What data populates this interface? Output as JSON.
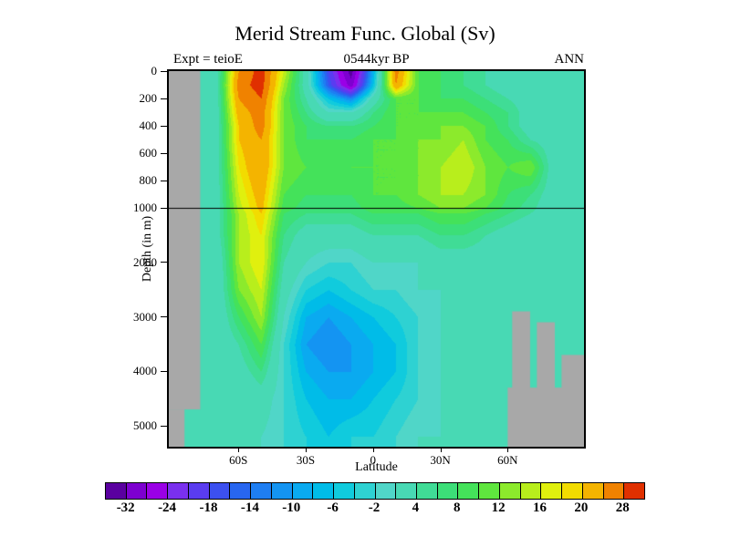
{
  "header": {
    "expt_label": "Expt = teioE",
    "time_label": "0544kyr BP",
    "season_label": "ANN"
  },
  "chart_data": {
    "type": "heatmap",
    "title": "Merid Stream Func. Global (Sv)",
    "subtitle": "0544kyr BP",
    "experiment": "teioE",
    "season": "ANN",
    "units": "Sv",
    "xlabel": "Latitude",
    "ylabel": "Depth (in m)",
    "xlim": [
      -91,
      94
    ],
    "depth_axis": {
      "note": "split axis: 0-1000 m stretched, 1000-5400 m compressed, black line at 1000 m",
      "break_depth": 1000,
      "max_depth": 5400
    },
    "x_ticks": [
      {
        "value": -60,
        "label": "60S"
      },
      {
        "value": -30,
        "label": "30S"
      },
      {
        "value": 0,
        "label": "0"
      },
      {
        "value": 30,
        "label": "30N"
      },
      {
        "value": 60,
        "label": "60N"
      }
    ],
    "y_ticks": [
      {
        "value": 0,
        "label": "0"
      },
      {
        "value": 200,
        "label": "200"
      },
      {
        "value": 400,
        "label": "400"
      },
      {
        "value": 600,
        "label": "600"
      },
      {
        "value": 800,
        "label": "800"
      },
      {
        "value": 1000,
        "label": "1000"
      },
      {
        "value": 2000,
        "label": "2000"
      },
      {
        "value": 3000,
        "label": "3000"
      },
      {
        "value": 4000,
        "label": "4000"
      },
      {
        "value": 5000,
        "label": "5000"
      }
    ],
    "grid": {
      "lats": [
        -90,
        -80,
        -70,
        -60,
        -50,
        -40,
        -30,
        -20,
        -10,
        0,
        10,
        20,
        30,
        40,
        50,
        60,
        70,
        80,
        90
      ],
      "depths": [
        0,
        100,
        200,
        300,
        400,
        500,
        700,
        900,
        1100,
        1500,
        2000,
        2500,
        3000,
        3500,
        4000,
        4500,
        5200
      ],
      "values": [
        [
          0,
          0,
          2,
          24,
          30,
          16,
          2,
          -18,
          -34,
          -8,
          26,
          10,
          8,
          6,
          4,
          2,
          0,
          0,
          0
        ],
        [
          0,
          0,
          2,
          26,
          30,
          14,
          2,
          -16,
          -30,
          -6,
          24,
          10,
          8,
          6,
          4,
          2,
          2,
          0,
          0
        ],
        [
          0,
          0,
          2,
          24,
          28,
          12,
          4,
          -6,
          -12,
          2,
          10,
          10,
          8,
          8,
          6,
          4,
          2,
          0,
          0
        ],
        [
          0,
          0,
          2,
          22,
          26,
          12,
          6,
          0,
          0,
          6,
          10,
          10,
          10,
          10,
          8,
          6,
          2,
          0,
          0
        ],
        [
          0,
          0,
          2,
          20,
          26,
          12,
          8,
          6,
          6,
          8,
          10,
          10,
          12,
          12,
          10,
          6,
          2,
          0,
          0
        ],
        [
          0,
          0,
          2,
          20,
          24,
          12,
          8,
          8,
          8,
          10,
          10,
          12,
          12,
          14,
          10,
          8,
          4,
          2,
          0
        ],
        [
          0,
          0,
          2,
          18,
          24,
          12,
          10,
          8,
          10,
          10,
          10,
          12,
          14,
          16,
          12,
          10,
          12,
          2,
          0
        ],
        [
          0,
          0,
          2,
          16,
          22,
          10,
          8,
          8,
          8,
          10,
          10,
          12,
          14,
          14,
          12,
          8,
          6,
          2,
          0
        ],
        [
          0,
          0,
          2,
          14,
          20,
          8,
          6,
          6,
          6,
          8,
          8,
          8,
          10,
          10,
          8,
          6,
          4,
          0,
          0
        ],
        [
          0,
          0,
          2,
          14,
          18,
          6,
          2,
          2,
          2,
          4,
          4,
          4,
          6,
          6,
          4,
          2,
          0,
          0,
          0
        ],
        [
          0,
          0,
          0,
          14,
          18,
          4,
          0,
          -2,
          -2,
          0,
          0,
          0,
          2,
          2,
          2,
          0,
          0,
          0,
          0
        ],
        [
          0,
          0,
          0,
          12,
          16,
          2,
          -4,
          -6,
          -4,
          -2,
          -2,
          0,
          0,
          0,
          0,
          0,
          0,
          0,
          0
        ],
        [
          0,
          0,
          0,
          8,
          14,
          0,
          -8,
          -10,
          -8,
          -6,
          -4,
          -2,
          0,
          0,
          0,
          0,
          0,
          0,
          0
        ],
        [
          0,
          0,
          0,
          4,
          10,
          -2,
          -10,
          -12,
          -10,
          -8,
          -6,
          -2,
          0,
          0,
          0,
          0,
          0,
          0,
          0
        ],
        [
          0,
          0,
          0,
          2,
          6,
          -2,
          -8,
          -10,
          -10,
          -8,
          -6,
          -2,
          0,
          0,
          0,
          0,
          0,
          0,
          0
        ],
        [
          0,
          0,
          0,
          0,
          2,
          -2,
          -6,
          -8,
          -8,
          -6,
          -4,
          -2,
          0,
          0,
          0,
          0,
          0,
          0,
          0
        ],
        [
          0,
          0,
          0,
          0,
          0,
          -2,
          -4,
          -6,
          -4,
          -4,
          -2,
          0,
          0,
          0,
          0,
          0,
          0,
          0,
          0
        ]
      ]
    },
    "mask_color": "#a8a8a8",
    "mask_regions": [
      {
        "lat": [
          -91,
          -77
        ],
        "depth": [
          0,
          4700
        ]
      },
      {
        "lat": [
          -91,
          -84
        ],
        "depth": [
          4700,
          5400
        ]
      },
      {
        "lat": [
          62,
          70
        ],
        "depth": [
          2900,
          5400
        ]
      },
      {
        "lat": [
          73,
          81
        ],
        "depth": [
          3100,
          5400
        ]
      },
      {
        "lat": [
          84,
          94
        ],
        "depth": [
          3700,
          5400
        ]
      },
      {
        "lat": [
          60,
          94
        ],
        "depth": [
          4300,
          5400
        ]
      }
    ],
    "colorbar": {
      "boundaries": [
        -36,
        -32,
        -28,
        -24,
        -21,
        -18,
        -16,
        -14,
        -12,
        -10,
        -8,
        -6,
        -4,
        -2,
        0,
        4,
        6,
        8,
        10,
        12,
        14,
        16,
        18,
        20,
        24,
        28,
        32
      ],
      "colors": [
        "#5a00a0",
        "#7d00d0",
        "#9a00e6",
        "#7a30ee",
        "#5a3cf0",
        "#3c50f0",
        "#2866f0",
        "#1e7ef2",
        "#1494f2",
        "#0aaaf0",
        "#00bce8",
        "#10cbdd",
        "#2ed2d2",
        "#50d6c8",
        "#48d9b4",
        "#40dc96",
        "#3cdf78",
        "#44e25a",
        "#5fe63e",
        "#8cea2c",
        "#b8ee1c",
        "#e0f00e",
        "#f2dc00",
        "#f4b400",
        "#f08200",
        "#e03000"
      ],
      "labels": [
        "-32",
        "-24",
        "-18",
        "-14",
        "-10",
        "-6",
        "-2",
        "4",
        "8",
        "12",
        "16",
        "20",
        "28"
      ],
      "label_boundary_indices": [
        1,
        3,
        5,
        7,
        9,
        11,
        13,
        15,
        17,
        19,
        21,
        23,
        25
      ]
    }
  }
}
